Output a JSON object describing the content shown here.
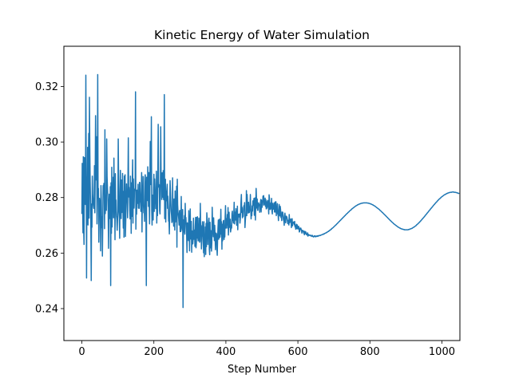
{
  "chart_data": {
    "type": "line",
    "title": "Kinetic Energy of Water Simulation",
    "xlabel": "Step Number",
    "ylabel": "",
    "xlim": [
      -50,
      1050
    ],
    "ylim": [
      0.2285,
      0.3345
    ],
    "x_ticks": [
      0,
      200,
      400,
      600,
      800,
      1000
    ],
    "y_ticks": [
      0.24,
      0.26,
      0.28,
      0.3,
      0.32
    ],
    "x_tick_labels": [
      "0",
      "200",
      "400",
      "600",
      "800",
      "1000"
    ],
    "y_tick_labels": [
      "0.24",
      "0.26",
      "0.28",
      "0.30",
      "0.32"
    ],
    "grid": false,
    "line_color": "#1f77b4",
    "series": [
      {
        "x_start": 0,
        "x_step": 1,
        "values": [
          0.2741,
          0.2923,
          0.2783,
          0.2673,
          0.2947,
          0.2689,
          0.2631,
          0.2944,
          0.2861,
          0.2781,
          0.2775,
          0.3241,
          0.2906,
          0.251,
          0.2874,
          0.2784,
          0.2981,
          0.2701,
          0.2906,
          0.3031,
          0.2726,
          0.3161,
          0.2982,
          0.2858,
          0.2782,
          0.2689,
          0.2501,
          0.2777,
          0.2693,
          0.2877,
          0.2813,
          0.279,
          0.2772,
          0.2761,
          0.2787,
          0.2915,
          0.2745,
          0.2881,
          0.3095,
          0.2938,
          0.2863,
          0.3019,
          0.2705,
          0.2825,
          0.3243,
          0.2799,
          0.2833,
          0.2639,
          0.2732,
          0.2797,
          0.2774,
          0.279,
          0.2608,
          0.2843,
          0.2791,
          0.2691,
          0.2731,
          0.2589,
          0.271,
          0.2843,
          0.2828,
          0.2851,
          0.2828,
          0.2688,
          0.3044,
          0.2742,
          0.2786,
          0.2808,
          0.2754,
          0.3011,
          0.2876,
          0.2836,
          0.2804,
          0.2757,
          0.2617,
          0.276,
          0.2812,
          0.2793,
          0.2724,
          0.2839,
          0.2483,
          0.2853,
          0.2671,
          0.2909,
          0.2694,
          0.2798,
          0.2799,
          0.2873,
          0.2727,
          0.2942,
          0.2766,
          0.281,
          0.2648,
          0.2886,
          0.2747,
          0.2791,
          0.2734,
          0.2722,
          0.2682,
          0.2716,
          0.2751,
          0.3011,
          0.2864,
          0.2755,
          0.2728,
          0.2653,
          0.2826,
          0.2898,
          0.2777,
          0.2724,
          0.2863,
          0.2746,
          0.2796,
          0.2887,
          0.2768,
          0.269,
          0.2822,
          0.2657,
          0.2877,
          0.2801,
          0.2882,
          0.266,
          0.2725,
          0.2781,
          0.2849,
          0.2796,
          0.2818,
          0.2727,
          0.2869,
          0.3015,
          0.2802,
          0.2837,
          0.2807,
          0.2754,
          0.2723,
          0.2877,
          0.2802,
          0.2671,
          0.2853,
          0.2732,
          0.2848,
          0.2936,
          0.2708,
          0.2867,
          0.2813,
          0.2762,
          0.2821,
          0.2831,
          0.2832,
          0.3181,
          0.2686,
          0.2821,
          0.274,
          0.2827,
          0.2779,
          0.2781,
          0.2848,
          0.2762,
          0.2812,
          0.2761,
          0.2855,
          0.2854,
          0.279,
          0.278,
          0.275,
          0.2814,
          0.289,
          0.2676,
          0.28,
          0.2801,
          0.2876,
          0.2773,
          0.2745,
          0.2761,
          0.2714,
          0.2871,
          0.2882,
          0.2841,
          0.2731,
          0.2483,
          0.2873,
          0.2838,
          0.2789,
          0.2911,
          0.2837,
          0.2768,
          0.289,
          0.2778,
          0.2705,
          0.2867,
          0.3002,
          0.2847,
          0.2858,
          0.3091,
          0.2756,
          0.2701,
          0.2809,
          0.2784,
          0.2719,
          0.2831,
          0.2884,
          0.275,
          0.2867,
          0.2789,
          0.2808,
          0.276,
          0.2838,
          0.2895,
          0.2708,
          0.2808,
          0.2735,
          0.2887,
          0.3064,
          0.2857,
          0.2837,
          0.2846,
          0.2752,
          0.2741,
          0.2809,
          0.3055,
          0.287,
          0.2876,
          0.2793,
          0.2889,
          0.2881,
          0.2801,
          0.2897,
          0.2793,
          0.2792,
          0.3171,
          0.2724,
          0.2779,
          0.2866,
          0.2712,
          0.2822,
          0.2788,
          0.2829,
          0.2848,
          0.2761,
          0.2805,
          0.2765,
          0.2715,
          0.2717,
          0.2669,
          0.2761,
          0.2861,
          0.2825,
          0.2785,
          0.2751,
          0.2737,
          0.271,
          0.2714,
          0.2871,
          0.2721,
          0.2738,
          0.2697,
          0.2795,
          0.2778,
          0.2683,
          0.2824,
          0.2712,
          0.2768,
          0.2735,
          0.2841,
          0.2621,
          0.2866,
          0.2775,
          0.2748,
          0.2736,
          0.2724,
          0.2701,
          0.275,
          0.2754,
          0.2677,
          0.2709,
          0.2678,
          0.2804,
          0.269,
          0.2732,
          0.2683,
          0.2757,
          0.2404,
          0.272,
          0.2675,
          0.2694,
          0.2735,
          0.2668,
          0.2779,
          0.2712,
          0.2728,
          0.2694,
          0.2665,
          0.2602,
          0.2709,
          0.2696,
          0.2667,
          0.2645,
          0.2753,
          0.27,
          0.2608,
          0.2673,
          0.2759,
          0.2651,
          0.2696,
          0.2714,
          0.2603,
          0.268,
          0.2678,
          0.2633,
          0.265,
          0.2726,
          0.265,
          0.2659,
          0.2683,
          0.2624,
          0.2698,
          0.2729,
          0.2619,
          0.2636,
          0.2728,
          0.2654,
          0.2731,
          0.2661,
          0.2644,
          0.2647,
          0.2726,
          0.2683,
          0.2639,
          0.2643,
          0.2779,
          0.2681,
          0.2699,
          0.2615,
          0.2641,
          0.268,
          0.2713,
          0.2675,
          0.2658,
          0.2601,
          0.2713,
          0.2587,
          0.2642,
          0.2618,
          0.2694,
          0.2595,
          0.2707,
          0.2623,
          0.2745,
          0.2722,
          0.2677,
          0.2631,
          0.27,
          0.2711,
          0.2726,
          0.2613,
          0.2594,
          0.2711,
          0.2619,
          0.2681,
          0.2664,
          0.2607,
          0.2637,
          0.2765,
          0.2708,
          0.2682,
          0.2659,
          0.2727,
          0.2675,
          0.2645,
          0.27,
          0.2665,
          0.2612,
          0.2664,
          0.2672,
          0.2668,
          0.2616,
          0.2592,
          0.2649,
          0.2689,
          0.2719,
          0.265,
          0.2667,
          0.2722,
          0.2656,
          0.2659,
          0.2688,
          0.2758,
          0.2668,
          0.2713,
          0.2614,
          0.2704,
          0.2644,
          0.2676,
          0.2716,
          0.2718,
          0.2649,
          0.2682,
          0.2658,
          0.273,
          0.2771,
          0.269,
          0.269,
          0.2724,
          0.2702,
          0.2739,
          0.269,
          0.2764,
          0.2665,
          0.2697,
          0.2747,
          0.2693,
          0.2709,
          0.2722,
          0.2676,
          0.2685,
          0.27,
          0.269,
          0.2743,
          0.2751,
          0.2718,
          0.2717,
          0.2708,
          0.2741,
          0.2783,
          0.2705,
          0.2748,
          0.2739,
          0.2719,
          0.276,
          0.2732,
          0.27,
          0.2711,
          0.2769,
          0.2684,
          0.2739,
          0.274,
          0.2739,
          0.273,
          0.2741,
          0.2708,
          0.2722,
          0.2748,
          0.2786,
          0.2811,
          0.2746,
          0.2765,
          0.2727,
          0.2735,
          0.2732,
          0.276,
          0.2771,
          0.2764,
          0.2782,
          0.2692,
          0.2716,
          0.2734,
          0.2737,
          0.2825,
          0.2735,
          0.2811,
          0.2777,
          0.277,
          0.2744,
          0.2783,
          0.2754,
          0.2746,
          0.2755,
          0.277,
          0.2811,
          0.276,
          0.2723,
          0.2742,
          0.2735,
          0.277,
          0.2751,
          0.2788,
          0.2772,
          0.2782,
          0.2797,
          0.2736,
          0.2766,
          0.2799,
          0.2719,
          0.2769,
          0.2833,
          0.2797,
          0.2762,
          0.2795,
          0.2754,
          0.2754,
          0.2778,
          0.2781,
          0.2771,
          0.2775,
          0.2747,
          0.2768,
          0.2781,
          0.2793,
          0.2748,
          0.2791,
          0.2764,
          0.2769,
          0.2774,
          0.2805,
          0.2803,
          0.2807,
          0.2773,
          0.2786,
          0.2777,
          0.2798,
          0.2768,
          0.2792,
          0.2759,
          0.2785,
          0.2762,
          0.2769,
          0.279,
          0.2785,
          0.2768,
          0.2741,
          0.281,
          0.2798,
          0.2758,
          0.2757,
          0.2758,
          0.2781,
          0.2762,
          0.2797,
          0.2751,
          0.2741,
          0.2779,
          0.2759,
          0.2762,
          0.2758,
          0.2781,
          0.2748,
          0.2748,
          0.2784,
          0.2748,
          0.2785,
          0.2735,
          0.276,
          0.2752,
          0.2778,
          0.274,
          0.274,
          0.2717,
          0.2753,
          0.2775,
          0.2761,
          0.2734,
          0.2768,
          0.2755,
          0.2728,
          0.274,
          0.2717,
          0.2748,
          0.2734,
          0.2747,
          0.2734,
          0.2719,
          0.2717,
          0.27,
          0.2733,
          0.2744,
          0.2727,
          0.2709,
          0.2729,
          0.2733,
          0.2731,
          0.2726,
          0.2714,
          0.2706,
          0.2718,
          0.2712,
          0.2701,
          0.2739,
          0.2709,
          0.2721,
          0.2713,
          0.2723,
          0.2713,
          0.2692,
          0.2717,
          0.2724,
          0.2698,
          0.2711,
          0.2708,
          0.2712,
          0.271,
          0.2702,
          0.2714,
          0.2694,
          0.2701,
          0.2686,
          0.2692,
          0.2704,
          0.2688,
          0.2702,
          0.2693,
          0.2687,
          0.2688,
          0.2697,
          0.2689,
          0.2676,
          0.2678,
          0.269,
          0.2685,
          0.269,
          0.2686,
          0.2682,
          0.2672,
          0.2682,
          0.2679,
          0.2681,
          0.2679,
          0.2672,
          0.2679,
          0.2666,
          0.2673,
          0.2678,
          0.267,
          0.2676,
          0.2671,
          0.2666,
          0.2668,
          0.2665,
          0.2673,
          0.2661,
          0.2667,
          0.2667,
          0.2664,
          0.2664,
          0.2665,
          0.2664,
          0.2662,
          0.2664,
          0.2663,
          0.2661,
          0.266,
          0.2664,
          0.2661,
          0.266,
          0.2658,
          0.266,
          0.2661,
          0.2662,
          0.2659,
          0.2662,
          0.266,
          0.2659,
          0.2661,
          0.266,
          0.2662,
          0.2662,
          0.266,
          0.2661,
          0.2663,
          0.2662,
          0.2663,
          0.2663,
          0.2664,
          0.2663,
          0.2664,
          0.2665,
          0.2665,
          0.2666,
          0.2666,
          0.2667,
          0.2667,
          0.2668,
          0.2669,
          0.2668,
          0.267,
          0.267,
          0.2671,
          0.2672,
          0.2672,
          0.2673,
          0.2673,
          0.2675,
          0.2675,
          0.2676,
          0.2677,
          0.2678,
          0.2678,
          0.268,
          0.268,
          0.2681,
          0.2683,
          0.2683,
          0.2684,
          0.2686,
          0.2686,
          0.2688,
          0.2689,
          0.269,
          0.2691,
          0.2692,
          0.2693,
          0.2695,
          0.2696,
          0.2697,
          0.2698,
          0.27,
          0.2701,
          0.2702,
          0.2703,
          0.2705,
          0.2706,
          0.2707,
          0.2709,
          0.271,
          0.2711,
          0.2713,
          0.2714,
          0.2715,
          0.2717,
          0.2718,
          0.2719,
          0.2721,
          0.2722,
          0.2723,
          0.2725,
          0.2726,
          0.2727,
          0.2729,
          0.273,
          0.2731,
          0.2733,
          0.2734,
          0.2735,
          0.2737,
          0.2738,
          0.2739,
          0.2741,
          0.2742,
          0.2743,
          0.2744,
          0.2746,
          0.2747,
          0.2748,
          0.2749,
          0.2751,
          0.2752,
          0.2753,
          0.2754,
          0.2755,
          0.2756,
          0.2758,
          0.2759,
          0.276,
          0.2761,
          0.2762,
          0.2763,
          0.2764,
          0.2765,
          0.2766,
          0.2767,
          0.2768,
          0.2769,
          0.277,
          0.2771,
          0.2771,
          0.2772,
          0.2773,
          0.2774,
          0.2774,
          0.2775,
          0.2776,
          0.2776,
          0.2777,
          0.2777,
          0.2778,
          0.2778,
          0.2779,
          0.2779,
          0.2779,
          0.278,
          0.278,
          0.278,
          0.278,
          0.2781,
          0.2781,
          0.2781,
          0.2781,
          0.2781,
          0.2781,
          0.2781,
          0.2781,
          0.2781,
          0.2781,
          0.2781,
          0.278,
          0.278,
          0.278,
          0.278,
          0.2779,
          0.2779,
          0.2779,
          0.2778,
          0.2778,
          0.2777,
          0.2777,
          0.2776,
          0.2776,
          0.2775,
          0.2774,
          0.2774,
          0.2773,
          0.2772,
          0.2771,
          0.2771,
          0.277,
          0.2769,
          0.2768,
          0.2767,
          0.2766,
          0.2765,
          0.2764,
          0.2763,
          0.2762,
          0.2761,
          0.276,
          0.2759,
          0.2758,
          0.2757,
          0.2756,
          0.2754,
          0.2753,
          0.2752,
          0.2751,
          0.275,
          0.2748,
          0.2747,
          0.2746,
          0.2745,
          0.2743,
          0.2742,
          0.2741,
          0.2739,
          0.2738,
          0.2737,
          0.2736,
          0.2734,
          0.2733,
          0.2732,
          0.273,
          0.2729,
          0.2728,
          0.2726,
          0.2725,
          0.2724,
          0.2722,
          0.2721,
          0.272,
          0.2718,
          0.2717,
          0.2716,
          0.2715,
          0.2713,
          0.2712,
          0.2711,
          0.271,
          0.2709,
          0.2707,
          0.2706,
          0.2705,
          0.2704,
          0.2703,
          0.2702,
          0.2701,
          0.27,
          0.2699,
          0.2698,
          0.2697,
          0.2696,
          0.2695,
          0.2694,
          0.2693,
          0.2693,
          0.2692,
          0.2691,
          0.269,
          0.269,
          0.2689,
          0.2688,
          0.2688,
          0.2687,
          0.2687,
          0.2686,
          0.2686,
          0.2686,
          0.2685,
          0.2685,
          0.2685,
          0.2684,
          0.2684,
          0.2684,
          0.2684,
          0.2684,
          0.2684,
          0.2684,
          0.2684,
          0.2684,
          0.2684,
          0.2684,
          0.2685,
          0.2685,
          0.2685,
          0.2686,
          0.2686,
          0.2687,
          0.2687,
          0.2688,
          0.2688,
          0.2689,
          0.2689,
          0.269,
          0.2691,
          0.2692,
          0.2693,
          0.2693,
          0.2694,
          0.2695,
          0.2696,
          0.2697,
          0.2698,
          0.2699,
          0.27,
          0.2702,
          0.2703,
          0.2704,
          0.2705,
          0.2706,
          0.2708,
          0.2709,
          0.271,
          0.2712,
          0.2713,
          0.2714,
          0.2716,
          0.2717,
          0.2719,
          0.272,
          0.2722,
          0.2723,
          0.2725,
          0.2726,
          0.2728,
          0.2729,
          0.2731,
          0.2732,
          0.2734,
          0.2736,
          0.2737,
          0.2739,
          0.274,
          0.2742,
          0.2744,
          0.2745,
          0.2747,
          0.2748,
          0.275,
          0.2752,
          0.2753,
          0.2755,
          0.2756,
          0.2758,
          0.276,
          0.2761,
          0.2763,
          0.2764,
          0.2766,
          0.2767,
          0.2769,
          0.2771,
          0.2772,
          0.2774,
          0.2775,
          0.2777,
          0.2778,
          0.278,
          0.2781,
          0.2783,
          0.2784,
          0.2785,
          0.2787,
          0.2788,
          0.279,
          0.2791,
          0.2792,
          0.2794,
          0.2795,
          0.2796,
          0.2797,
          0.2798,
          0.28,
          0.2801,
          0.2802,
          0.2803,
          0.2804,
          0.2805,
          0.2806,
          0.2807,
          0.2808,
          0.2809,
          0.281,
          0.281,
          0.2811,
          0.2812,
          0.2813,
          0.2813,
          0.2814,
          0.2815,
          0.2815,
          0.2816,
          0.2816,
          0.2817,
          0.2817,
          0.2818,
          0.2818,
          0.2818,
          0.2819,
          0.2819,
          0.2819,
          0.2819,
          0.2819,
          0.282,
          0.282,
          0.282,
          0.282,
          0.282,
          0.282,
          0.2819,
          0.2819,
          0.2819,
          0.2819,
          0.2819,
          0.2818,
          0.2818,
          0.2818,
          0.2817,
          0.2817,
          0.2816,
          0.2816,
          0.2815,
          0.2815,
          0.2814
        ]
      }
    ]
  }
}
